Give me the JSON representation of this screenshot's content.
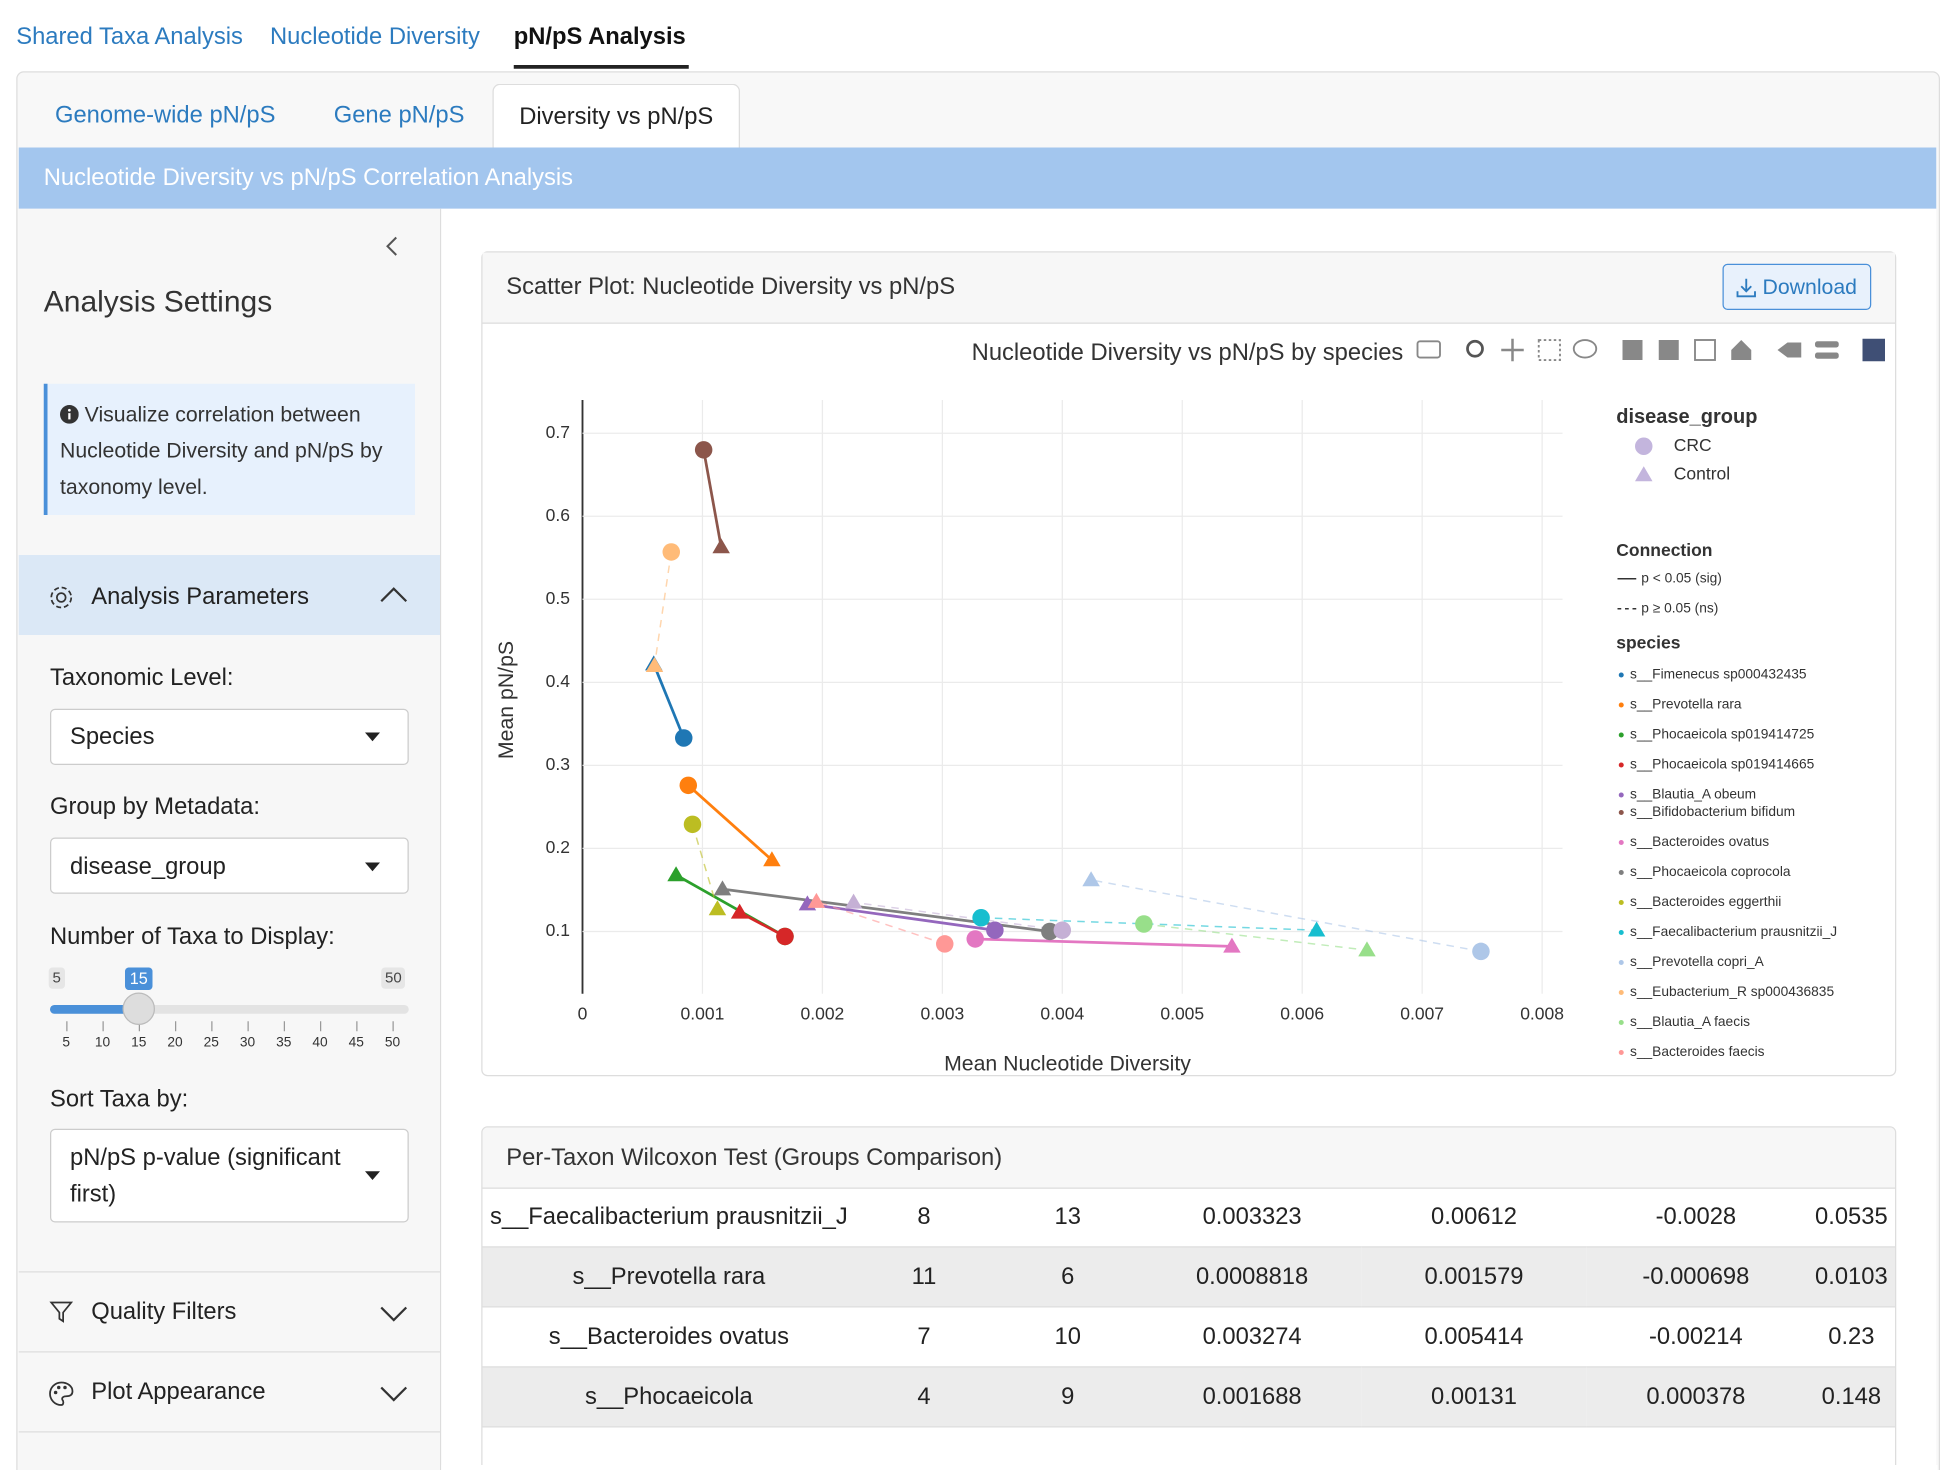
{
  "tabs": [
    "Shared Taxa Analysis",
    "Nucleotide Diversity",
    "pN/pS Analysis"
  ],
  "subtabs": [
    "Genome-wide pN/pS",
    "Gene pN/pS",
    "Diversity vs pN/pS"
  ],
  "banner": "Nucleotide Diversity vs pN/pS Correlation Analysis",
  "sidebar": {
    "title": "Analysis Settings",
    "info": "Visualize correlation between Nucleotide Diversity and pN/pS by taxonomy level.",
    "parameters_header": "Analysis Parameters",
    "taxonomic_level": {
      "label": "Taxonomic Level:",
      "value": "Species"
    },
    "group_by": {
      "label": "Group by Metadata:",
      "value": "disease_group"
    },
    "num_taxa": {
      "label": "Number of Taxa to Display:",
      "min": 5,
      "max": 50,
      "value": 15,
      "ticks": [
        5,
        10,
        15,
        20,
        25,
        30,
        35,
        40,
        45,
        50
      ]
    },
    "sort_by": {
      "label": "Sort Taxa by:",
      "value": "pN/pS p-value (significant first)"
    },
    "sections": [
      "Quality Filters",
      "Plot Appearance"
    ]
  },
  "plot_card": {
    "title": "Scatter Plot: Nucleotide Diversity vs pN/pS",
    "download": "Download"
  },
  "chart_data": {
    "type": "scatter",
    "title": "Nucleotide Diversity vs pN/pS by species",
    "x_label": "Mean Nucleotide Diversity",
    "y_label": "Mean pN/pS",
    "xlim": [
      0,
      0.00817
    ],
    "ylim": [
      0.025,
      0.74
    ],
    "xticks": [
      0,
      0.001,
      0.002,
      0.003,
      0.004,
      0.005,
      0.006,
      0.007,
      0.008
    ],
    "yticks": [
      0.1,
      0.2,
      0.3,
      0.4,
      0.5,
      0.6,
      0.7
    ],
    "grid": true,
    "marker_legend": {
      "title": "disease_group",
      "groups": [
        "CRC",
        "Control"
      ],
      "color": "#c3b5dd"
    },
    "connection_legend": {
      "title": "Connection",
      "items": [
        "p < 0.05 (sig)",
        "p ≥ 0.05 (ns)"
      ]
    },
    "species_legend_title": "species",
    "series": [
      {
        "name": "s__Fimenecus sp000432435",
        "color": "#1f77b4",
        "x": [
          0.000844,
          0.000594
        ],
        "values": [
          0.333,
          0.422
        ],
        "connection": "sig"
      },
      {
        "name": "s__Prevotella rara",
        "color": "#ff7f0e",
        "x": [
          0.0008818,
          0.001579
        ],
        "values": [
          0.276,
          0.186
        ],
        "connection": "sig"
      },
      {
        "name": "s__Phocaeicola sp019414725",
        "color": "#2ca02c",
        "x": [
          0.001688,
          0.00078
        ],
        "values": [
          0.094,
          0.168
        ],
        "connection": "sig"
      },
      {
        "name": "s__Phocaeicola sp019414665",
        "color": "#d62728",
        "x": [
          0.001688,
          0.00131
        ],
        "values": [
          0.094,
          0.123
        ],
        "connection": "sig"
      },
      {
        "name": "s__Blautia_A obeum",
        "color": "#9467bd",
        "x": [
          0.003438,
          0.001875
        ],
        "values": [
          0.1015,
          0.133
        ],
        "connection": "sig"
      },
      {
        "name": "s__Bifidobacterium bifidum",
        "color": "#8c564b",
        "x": [
          0.00101,
          0.001156
        ],
        "values": [
          0.68,
          0.563
        ],
        "connection": "sig"
      },
      {
        "name": "s__Bacteroides ovatus",
        "color": "#e377c2",
        "x": [
          0.003274,
          0.005414
        ],
        "values": [
          0.091,
          0.082
        ],
        "connection": "sig"
      },
      {
        "name": "s__Phocaeicola coprocola",
        "color": "#7f7f7f",
        "x": [
          0.003896,
          0.001167
        ],
        "values": [
          0.1,
          0.151
        ],
        "connection": "sig"
      },
      {
        "name": "s__Bacteroides eggerthii",
        "color": "#bcbd22",
        "x": [
          0.000917,
          0.001125
        ],
        "values": [
          0.229,
          0.127
        ],
        "connection": "ns"
      },
      {
        "name": "s__Faecalibacterium prausnitzii_J",
        "color": "#17becf",
        "x": [
          0.003323,
          0.00612
        ],
        "values": [
          0.1165,
          0.1015
        ],
        "connection": "ns"
      },
      {
        "name": "s__Prevotella copri_A",
        "color": "#aec7e8",
        "x": [
          0.00749,
          0.00424
        ],
        "values": [
          0.076,
          0.162
        ],
        "connection": "ns"
      },
      {
        "name": "s__Eubacterium_R sp000436835",
        "color": "#ffbb78",
        "x": [
          0.00074,
          0.0006
        ],
        "values": [
          0.557,
          0.42
        ],
        "connection": "ns"
      },
      {
        "name": "s__Blautia_A faecis",
        "color": "#98df8a",
        "x": [
          0.00468,
          0.00654
        ],
        "values": [
          0.109,
          0.0775
        ],
        "connection": "ns"
      },
      {
        "name": "s__Bacteroides faecis",
        "color": "#ff9896",
        "x": [
          0.00302,
          0.00195
        ],
        "values": [
          0.085,
          0.136
        ],
        "connection": "ns"
      },
      {
        "name": null,
        "color": "#c5b0d5",
        "x": [
          0.004,
          0.00226
        ],
        "values": [
          0.1015,
          0.135
        ],
        "connection": "ns"
      }
    ]
  },
  "table": {
    "title": "Per-Taxon Wilcoxon Test (Groups Comparison)",
    "rows": [
      [
        "s__Faecalibacterium prausnitzii_J",
        8,
        13,
        0.003323,
        0.00612,
        -0.0028,
        0.0535
      ],
      [
        "s__Prevotella rara",
        11,
        6,
        0.0008818,
        0.001579,
        -0.000698,
        0.0103
      ],
      [
        "s__Bacteroides ovatus",
        7,
        10,
        0.003274,
        0.005414,
        -0.00214,
        0.23
      ],
      [
        "s__Phocaeicola",
        4,
        9,
        0.001688,
        0.00131,
        0.000378,
        0.148
      ]
    ]
  }
}
